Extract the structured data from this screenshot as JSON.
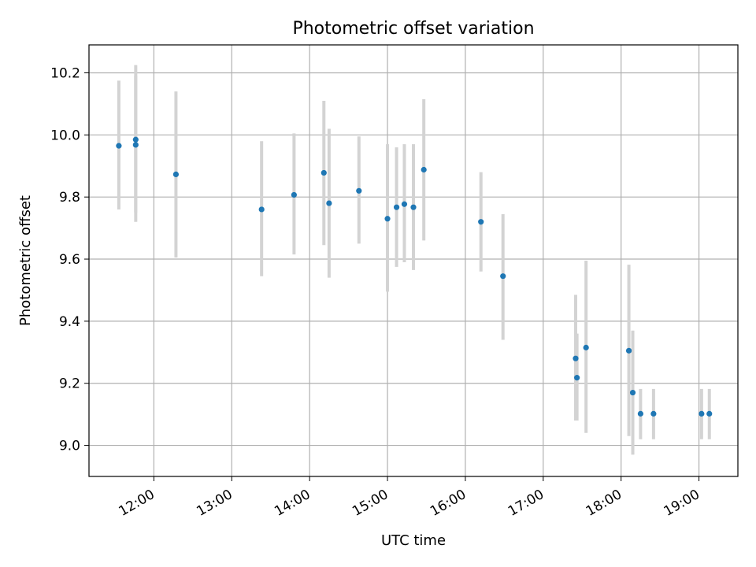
{
  "chart_data": {
    "type": "scatter",
    "title": "Photometric offset variation",
    "xlabel": "UTC time",
    "ylabel": "Photometric offset",
    "xlim": [
      "11:10",
      "19:30"
    ],
    "ylim": [
      8.9,
      10.29
    ],
    "x_ticks": [
      "12:00",
      "13:00",
      "14:00",
      "15:00",
      "16:00",
      "17:00",
      "18:00",
      "19:00"
    ],
    "y_ticks": [
      "9.0",
      "9.2",
      "9.4",
      "9.6",
      "9.8",
      "10.0",
      "10.2"
    ],
    "grid": true,
    "marker_color": "#1f77b4",
    "errorbar_color": "#d3d3d3",
    "points": [
      {
        "x": "11:33",
        "y": 9.965,
        "err_low": 9.76,
        "err_high": 10.175
      },
      {
        "x": "11:46",
        "y": 9.985,
        "err_low": 9.72,
        "err_high": 10.225
      },
      {
        "x": "11:46",
        "y": 9.968,
        "err_low": 9.75,
        "err_high": 10.19
      },
      {
        "x": "12:17",
        "y": 9.873,
        "err_low": 9.605,
        "err_high": 10.14
      },
      {
        "x": "13:23",
        "y": 9.76,
        "err_low": 9.545,
        "err_high": 9.98
      },
      {
        "x": "13:48",
        "y": 9.807,
        "err_low": 9.615,
        "err_high": 10.005
      },
      {
        "x": "14:11",
        "y": 9.878,
        "err_low": 9.645,
        "err_high": 10.11
      },
      {
        "x": "14:15",
        "y": 9.78,
        "err_low": 9.54,
        "err_high": 10.02
      },
      {
        "x": "14:38",
        "y": 9.82,
        "err_low": 9.65,
        "err_high": 9.995
      },
      {
        "x": "15:00",
        "y": 9.73,
        "err_low": 9.495,
        "err_high": 9.97
      },
      {
        "x": "15:07",
        "y": 9.767,
        "err_low": 9.575,
        "err_high": 9.96
      },
      {
        "x": "15:13",
        "y": 9.777,
        "err_low": 9.59,
        "err_high": 9.97
      },
      {
        "x": "15:20",
        "y": 9.767,
        "err_low": 9.565,
        "err_high": 9.97
      },
      {
        "x": "15:28",
        "y": 9.888,
        "err_low": 9.66,
        "err_high": 10.115
      },
      {
        "x": "16:12",
        "y": 9.72,
        "err_low": 9.56,
        "err_high": 9.88
      },
      {
        "x": "16:29",
        "y": 9.545,
        "err_low": 9.34,
        "err_high": 9.745
      },
      {
        "x": "17:25",
        "y": 9.28,
        "err_low": 9.08,
        "err_high": 9.485
      },
      {
        "x": "17:26",
        "y": 9.218,
        "err_low": 9.08,
        "err_high": 9.36
      },
      {
        "x": "17:33",
        "y": 9.315,
        "err_low": 9.04,
        "err_high": 9.595
      },
      {
        "x": "18:06",
        "y": 9.305,
        "err_low": 9.03,
        "err_high": 9.582
      },
      {
        "x": "18:09",
        "y": 9.17,
        "err_low": 8.97,
        "err_high": 9.37
      },
      {
        "x": "18:15",
        "y": 9.102,
        "err_low": 9.02,
        "err_high": 9.182
      },
      {
        "x": "18:25",
        "y": 9.102,
        "err_low": 9.02,
        "err_high": 9.182
      },
      {
        "x": "19:02",
        "y": 9.102,
        "err_low": 9.02,
        "err_high": 9.182
      },
      {
        "x": "19:08",
        "y": 9.102,
        "err_low": 9.02,
        "err_high": 9.182
      }
    ]
  }
}
